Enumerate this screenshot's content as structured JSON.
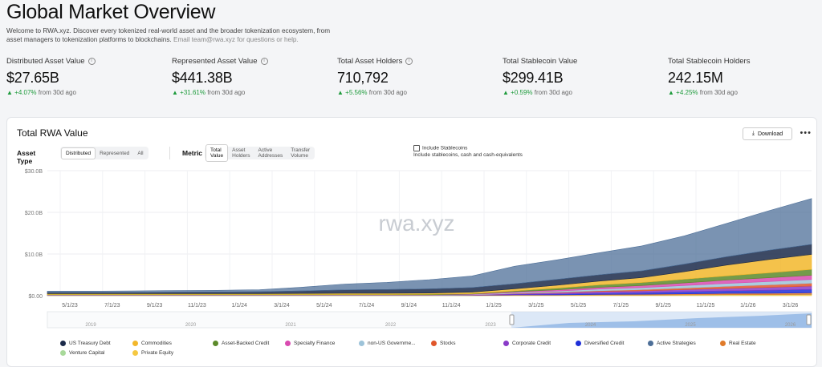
{
  "page": {
    "title": "Global Market Overview",
    "intro": "Welcome to RWA.xyz. Discover every tokenized real-world asset and the broader tokenization ecosystem, from asset managers to tokenization platforms to blockchains.",
    "intro_email": "Email team@rwa.xyz for questions or help."
  },
  "metrics": [
    {
      "label": "Distributed Asset Value",
      "value": "$27.65B",
      "change": "+4.07%",
      "period": "from 30d ago"
    },
    {
      "label": "Represented Asset Value",
      "value": "$441.38B",
      "change": "+31.61%",
      "period": "from 30d ago"
    },
    {
      "label": "Total Asset Holders",
      "value": "710,792",
      "change": "+5.56%",
      "period": "from 30d ago"
    },
    {
      "label": "Total Stablecoin Value",
      "value": "$299.41B",
      "change": "+0.59%",
      "period": "from 30d ago"
    },
    {
      "label": "Total Stablecoin Holders",
      "value": "242.15M",
      "change": "+4.25%",
      "period": "from 30d ago"
    }
  ],
  "card": {
    "title": "Total RWA Value",
    "download_label": "Download",
    "more_label": "•••",
    "asset_type_label": "Asset Type",
    "asset_type_options": [
      "Distributed",
      "Represented",
      "All"
    ],
    "asset_type_selected": "Distributed",
    "metric_label": "Metric",
    "metric_options": [
      "Total Value",
      "Asset Holders",
      "Active Addresses",
      "Transfer Volume"
    ],
    "metric_selected": "Total Value",
    "stablecoin_label": "Include Stablecoins",
    "stablecoin_desc": "Include stablecoins, cash and cash-equivalents",
    "watermark": "rwa.xyz"
  },
  "chart_data": {
    "type": "area",
    "ylim": [
      0,
      30
    ],
    "y_ticks": [
      "$0.00",
      "$10.0B",
      "$20.0B",
      "$30.0B"
    ],
    "x_ticks": [
      "5/1/23",
      "7/1/23",
      "9/1/23",
      "11/1/23",
      "1/1/24",
      "3/1/24",
      "5/1/24",
      "7/1/24",
      "9/1/24",
      "11/1/24",
      "1/1/25",
      "3/1/25",
      "5/1/25",
      "7/1/25",
      "9/1/25",
      "11/1/25",
      "1/1/26",
      "3/1/26"
    ],
    "brush_ticks": [
      "2019",
      "2020",
      "2021",
      "2022",
      "2023",
      "2024",
      "2025",
      "2026"
    ],
    "x": [
      "4/1/23",
      "6/1/23",
      "8/1/23",
      "10/1/23",
      "12/1/23",
      "2/1/24",
      "4/1/24",
      "6/1/24",
      "8/1/24",
      "10/1/24",
      "12/1/24",
      "2/1/25",
      "4/1/25",
      "6/1/25",
      "8/1/25",
      "10/1/25",
      "12/1/25",
      "2/1/26",
      "4/1/26"
    ],
    "series": [
      {
        "name": "US Treasury Debt",
        "color": "#1b2a4a",
        "values": [
          0.3,
          0.3,
          0.3,
          0.35,
          0.4,
          0.45,
          0.6,
          0.8,
          0.9,
          1.0,
          1.1,
          1.2,
          1.4,
          1.5,
          1.6,
          1.8,
          2.0,
          2.2,
          2.4
        ]
      },
      {
        "name": "Commodities",
        "color": "#f2b72b",
        "values": [
          0.2,
          0.2,
          0.2,
          0.2,
          0.2,
          0.2,
          0.25,
          0.3,
          0.3,
          0.3,
          0.35,
          0.5,
          0.7,
          0.9,
          1.2,
          1.8,
          2.6,
          3.2,
          3.6
        ]
      },
      {
        "name": "Asset-Backed Credit",
        "color": "#5c8a2a",
        "values": [
          0.05,
          0.05,
          0.05,
          0.05,
          0.05,
          0.05,
          0.05,
          0.05,
          0.05,
          0.1,
          0.1,
          0.2,
          0.4,
          0.6,
          0.7,
          0.9,
          1.0,
          1.2,
          1.4
        ]
      },
      {
        "name": "Specialty Finance",
        "color": "#d94bb0",
        "values": [
          0.05,
          0.05,
          0.05,
          0.05,
          0.05,
          0.05,
          0.05,
          0.05,
          0.05,
          0.05,
          0.1,
          0.2,
          0.3,
          0.4,
          0.5,
          0.6,
          0.8,
          0.9,
          1.0
        ]
      },
      {
        "name": "non-US Government Debt",
        "color": "#9dc3d9",
        "values": [
          0.05,
          0.05,
          0.05,
          0.05,
          0.05,
          0.05,
          0.05,
          0.05,
          0.05,
          0.05,
          0.1,
          0.2,
          0.3,
          0.4,
          0.5,
          0.6,
          0.7,
          0.8,
          0.9
        ]
      },
      {
        "name": "Stocks",
        "color": "#e0562b",
        "values": [
          0,
          0,
          0,
          0,
          0,
          0,
          0,
          0,
          0,
          0,
          0,
          0.05,
          0.1,
          0.2,
          0.3,
          0.4,
          0.5,
          0.6,
          0.7
        ]
      },
      {
        "name": "Corporate Credit",
        "color": "#8a3bc8",
        "values": [
          0.05,
          0.05,
          0.05,
          0.05,
          0.05,
          0.05,
          0.05,
          0.05,
          0.05,
          0.05,
          0.1,
          0.2,
          0.3,
          0.4,
          0.4,
          0.5,
          0.6,
          0.7,
          0.8
        ]
      },
      {
        "name": "Diversified Credit",
        "color": "#1e2fd8",
        "values": [
          0,
          0,
          0,
          0,
          0,
          0,
          0,
          0,
          0,
          0,
          0,
          0.1,
          0.2,
          0.3,
          0.4,
          0.5,
          0.6,
          0.7,
          0.8
        ]
      },
      {
        "name": "Active Strategies",
        "color": "#4d6f98",
        "values": [
          0.3,
          0.3,
          0.35,
          0.4,
          0.4,
          0.5,
          0.9,
          1.4,
          1.7,
          2.2,
          2.8,
          4.2,
          4.7,
          5.3,
          6.0,
          6.8,
          8.0,
          9.5,
          11.0
        ]
      },
      {
        "name": "Real Estate",
        "color": "#e07b2a",
        "values": [
          0.05,
          0.05,
          0.05,
          0.05,
          0.05,
          0.05,
          0.05,
          0.05,
          0.05,
          0.05,
          0.05,
          0.1,
          0.1,
          0.15,
          0.2,
          0.25,
          0.3,
          0.35,
          0.4
        ]
      },
      {
        "name": "Venture Capital",
        "color": "#a8d99a",
        "values": [
          0.02,
          0.02,
          0.02,
          0.02,
          0.02,
          0.02,
          0.02,
          0.02,
          0.02,
          0.02,
          0.02,
          0.05,
          0.05,
          0.05,
          0.05,
          0.05,
          0.05,
          0.05,
          0.05
        ]
      },
      {
        "name": "Private Equity",
        "color": "#f5c842",
        "values": [
          0.02,
          0.02,
          0.02,
          0.02,
          0.02,
          0.02,
          0.02,
          0.02,
          0.02,
          0.02,
          0.02,
          0.05,
          0.05,
          0.1,
          0.1,
          0.15,
          0.2,
          0.2,
          0.25
        ]
      }
    ]
  },
  "legend": [
    {
      "label": "US Treasury Debt",
      "color": "#1b2a4a"
    },
    {
      "label": "Commodities",
      "color": "#f2b72b"
    },
    {
      "label": "Asset-Backed Credit",
      "color": "#5c8a2a"
    },
    {
      "label": "Specialty Finance",
      "color": "#d94bb0"
    },
    {
      "label": "non-US Governme...",
      "color": "#9dc3d9"
    },
    {
      "label": "Stocks",
      "color": "#e0562b"
    },
    {
      "label": "Corporate Credit",
      "color": "#8a3bc8"
    },
    {
      "label": "Diversified Credit",
      "color": "#1e2fd8"
    },
    {
      "label": "Active Strategies",
      "color": "#4d6f98"
    },
    {
      "label": "Real Estate",
      "color": "#e07b2a"
    },
    {
      "label": "Venture Capital",
      "color": "#a8d99a"
    },
    {
      "label": "Private Equity",
      "color": "#f5c842"
    }
  ]
}
